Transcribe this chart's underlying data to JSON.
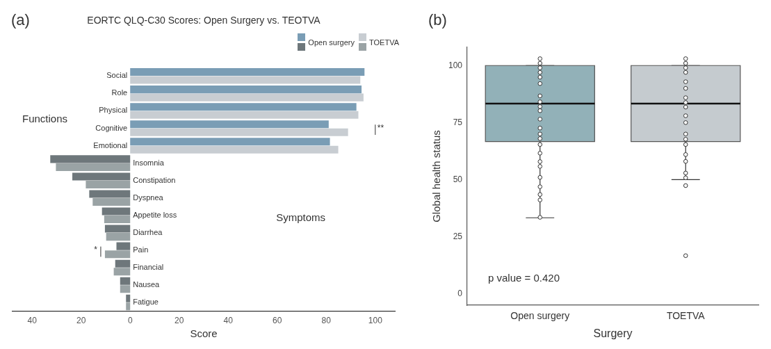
{
  "chart_data": [
    {
      "type": "bar",
      "orientation": "horizontal",
      "title": "EORTC QLQ-C30 Scores: Open Surgery vs. TEOTVA",
      "xlabel": "Score",
      "categories": [
        "Social",
        "Role",
        "Physical",
        "Cognitive",
        "Emotional",
        "Insomnia",
        "Constipation",
        "Dyspnea",
        "Appetite loss",
        "Diarrhea",
        "Pain",
        "Financial",
        "Nausea",
        "Fatigue"
      ],
      "series": [
        {
          "name": "Open surgery",
          "color": "#7a9db5",
          "colors": [
            "#7a9db5",
            "#7a9db5",
            "#7a9db5",
            "#7a9db5",
            "#7a9db5",
            "#6e777b",
            "#6e777b",
            "#6e777b",
            "#6e777b",
            "#6e777b",
            "#6e777b",
            "#6e777b",
            "#6e777b",
            "#6e777b"
          ],
          "values": [
            95.6,
            94.4,
            92.3,
            81.0,
            81.5,
            -32.6,
            -23.6,
            -16.7,
            -11.5,
            -10.3,
            -5.6,
            -6.1,
            -4.1,
            -1.7
          ]
        },
        {
          "name": "TOETVA",
          "color": "#c8cdd2",
          "colors": [
            "#c8cdd2",
            "#c8cdd2",
            "#c8cdd2",
            "#c8cdd2",
            "#c8cdd2",
            "#9aa3a5",
            "#9aa3a5",
            "#9aa3a5",
            "#9aa3a5",
            "#9aa3a5",
            "#9aa3a5",
            "#9aa3a5",
            "#9aa3a5",
            "#9aa3a5"
          ],
          "values": [
            93.9,
            95.2,
            93.1,
            88.9,
            84.9,
            -30.3,
            -18.1,
            -15.3,
            -10.6,
            -9.8,
            -10.3,
            -6.7,
            -4.1,
            -1.7
          ]
        }
      ],
      "xlim": [
        -48,
        108
      ],
      "xticks": [
        {
          "value": -40,
          "label": "40"
        },
        {
          "value": -20,
          "label": "20"
        },
        0,
        20,
        40,
        60,
        80,
        100
      ],
      "grid": false,
      "legend": "top right",
      "annotations": [
        "(a)",
        "Functions",
        "Symptoms",
        "**",
        "*"
      ]
    },
    {
      "type": "box",
      "xlabel": "Surgery",
      "ylabel": "Global health status",
      "categories": [
        "Open surgery",
        "TOETVA"
      ],
      "colors": [
        "#92b1b8",
        "#c5cbcf"
      ],
      "boxes": [
        {
          "low": 33.3,
          "q1": 66.7,
          "median": 83.3,
          "q3": 100,
          "high": 100
        },
        {
          "low": 50,
          "q1": 66.7,
          "median": 83.3,
          "q3": 100,
          "high": 100
        }
      ],
      "series": [
        {
          "type": "scatter",
          "color": "#333333",
          "x": [
            "Open surgery",
            "Open surgery",
            "Open surgery",
            "Open surgery",
            "Open surgery",
            "Open surgery",
            "Open surgery",
            "Open surgery",
            "Open surgery",
            "Open surgery",
            "Open surgery",
            "Open surgery",
            "Open surgery",
            "Open surgery",
            "Open surgery",
            "Open surgery",
            "Open surgery",
            "Open surgery",
            "Open surgery",
            "Open surgery",
            "Open surgery",
            "Open surgery",
            "Open surgery"
          ],
          "values": [
            103,
            101,
            99,
            97,
            94.9,
            92.1,
            86.7,
            84.1,
            82,
            80.2,
            76.5,
            72.6,
            70,
            68,
            65.4,
            61.6,
            57.9,
            55.8,
            51,
            46.9,
            43.5,
            41.1,
            33.5
          ]
        },
        {
          "type": "scatter",
          "color": "#333333",
          "x": [
            "TOETVA",
            "TOETVA",
            "TOETVA",
            "TOETVA",
            "TOETVA",
            "TOETVA",
            "TOETVA",
            "TOETVA",
            "TOETVA",
            "TOETVA",
            "TOETVA",
            "TOETVA",
            "TOETVA",
            "TOETVA",
            "TOETVA",
            "TOETVA",
            "TOETVA",
            "TOETVA",
            "TOETVA",
            "TOETVA"
          ],
          "values": [
            103,
            101,
            99,
            97,
            92.9,
            90,
            85.9,
            83.8,
            81.8,
            78,
            75,
            70,
            67.7,
            65.4,
            61,
            58,
            52.9,
            50.8,
            47.4,
            16.7
          ]
        }
      ],
      "ylim": [
        -5,
        108
      ],
      "yticks": [
        0,
        25,
        50,
        75,
        100
      ],
      "grid": false,
      "marker": "circle",
      "annotations": [
        "(b)",
        "p value = 0.420"
      ]
    }
  ]
}
